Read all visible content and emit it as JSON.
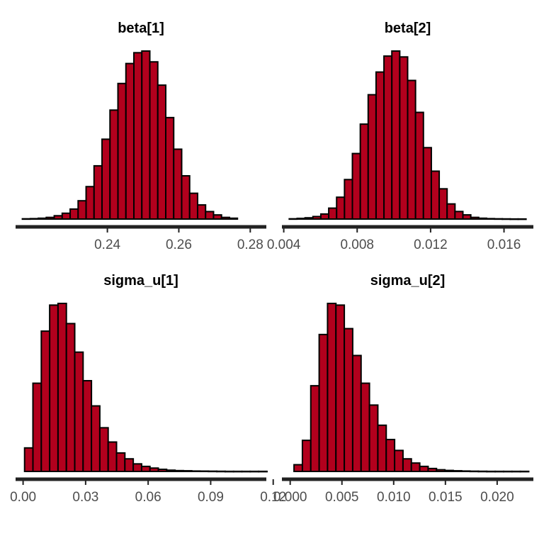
{
  "colors": {
    "bar_fill": "#B2001D",
    "bar_stroke": "#000000",
    "axis_line": "#222222",
    "tick_label": "#4d4d4d"
  },
  "chart_data": [
    {
      "type": "bar",
      "title": "beta[1]",
      "xlabel": "",
      "ylabel": "",
      "xlim": [
        0.2143,
        0.2845
      ],
      "xticks": [
        0.24,
        0.26,
        0.28
      ],
      "xtick_labels": [
        "0.24",
        "0.26",
        "0.28"
      ],
      "bin_start": 0.2162,
      "bin_width": 0.00223,
      "counts": [
        0.3,
        0.5,
        1,
        2,
        4,
        7,
        12,
        22,
        39,
        64,
        96,
        131,
        163,
        187,
        200,
        202,
        189,
        161,
        122,
        84,
        52,
        31,
        17,
        9,
        5,
        2,
        1
      ]
    },
    {
      "type": "bar",
      "title": "beta[2]",
      "xlabel": "",
      "ylabel": "",
      "xlim": [
        0.0039,
        0.0176
      ],
      "xticks": [
        0.004,
        0.008,
        0.012,
        0.016
      ],
      "xtick_labels": [
        "0.004",
        "0.008",
        "0.012",
        "0.016"
      ],
      "bin_start": 0.0043,
      "bin_width": 0.00043,
      "counts": [
        0.3,
        0.8,
        1.5,
        3,
        6,
        13,
        26,
        47,
        78,
        113,
        148,
        175,
        194,
        200,
        193,
        165,
        127,
        85,
        57,
        36,
        18,
        9,
        5,
        2,
        1,
        0.5,
        0.3,
        0.2,
        0.1,
        0.1
      ]
    },
    {
      "type": "bar",
      "title": "sigma_u[1]",
      "xlabel": "",
      "ylabel": "",
      "xlim": [
        -0.0036,
        0.1167
      ],
      "xticks": [
        0.0,
        0.03,
        0.06,
        0.09,
        0.12
      ],
      "xtick_labels": [
        "0.00",
        "0.03",
        "0.06",
        "0.09",
        "0.12"
      ],
      "bin_start": 0.00072,
      "bin_width": 0.00401,
      "counts": [
        28,
        105,
        167,
        198,
        200,
        176,
        142,
        108,
        78,
        52,
        35,
        22,
        15,
        9,
        6,
        4,
        2.5,
        1.5,
        1,
        0.8,
        0.5,
        0.4,
        0.3,
        0.2,
        0.1,
        0.1,
        0.1,
        0.1,
        0.1
      ]
    },
    {
      "type": "bar",
      "title": "sigma_u[2]",
      "xlabel": "",
      "ylabel": "",
      "xlim": [
        -0.0008,
        0.0235
      ],
      "xticks": [
        0.0,
        0.005,
        0.01,
        0.015,
        0.02
      ],
      "xtick_labels": [
        "0.000",
        "0.005",
        "0.010",
        "0.015",
        "0.020"
      ],
      "bin_start": 0.00037,
      "bin_width": 0.00081,
      "counts": [
        8,
        37,
        102,
        163,
        200,
        198,
        170,
        138,
        105,
        79,
        55,
        38,
        25,
        15,
        10,
        6,
        3.5,
        2,
        1.2,
        0.8,
        0.5,
        0.3,
        0.2,
        0.1,
        0.1,
        0.1,
        0.1,
        0.1
      ]
    }
  ]
}
